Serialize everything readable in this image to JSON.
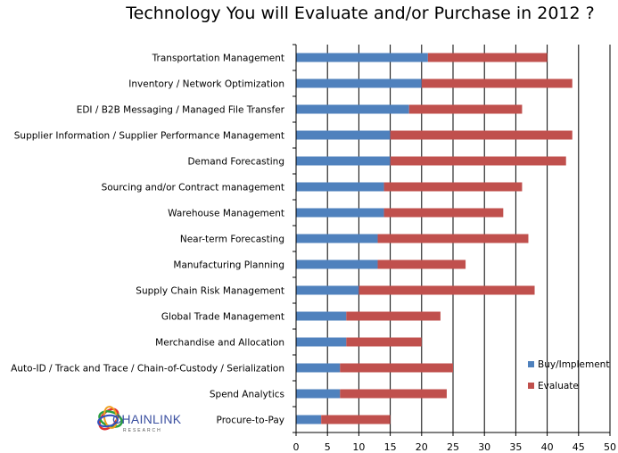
{
  "chart_data": {
    "type": "bar",
    "orientation": "horizontal",
    "stacked": true,
    "title": "Technology You will Evaluate and/or Purchase in 2012 ?",
    "categories": [
      "Transportation Management",
      "Inventory / Network Optimization",
      "EDI / B2B Messaging / Managed File Transfer",
      "Supplier Information / Supplier Performance Management",
      "Demand  Forecasting",
      "Sourcing and/or Contract management",
      "Warehouse Management",
      "Near-term Forecasting",
      "Manufacturing Planning",
      "Supply Chain Risk Management",
      "Global Trade Management",
      "Merchandise and Allocation",
      "Auto-ID / Track and Trace / Chain-of-Custody / Serialization",
      "Spend Analytics",
      "Procure-to-Pay"
    ],
    "series": [
      {
        "name": "Buy/Implement",
        "color": "#4f81bd",
        "values": [
          21,
          20,
          18,
          15,
          15,
          14,
          14,
          13,
          13,
          10,
          8,
          8,
          7,
          7,
          4
        ]
      },
      {
        "name": "Evaluate",
        "color": "#c0504d",
        "values": [
          19,
          24,
          18,
          29,
          28,
          22,
          19,
          24,
          14,
          28,
          15,
          12,
          18,
          17,
          11
        ]
      }
    ],
    "xlim": [
      0,
      50
    ],
    "xticks": [
      "0",
      "5",
      "10",
      "15",
      "20",
      "25",
      "30",
      "35",
      "40",
      "45",
      "50"
    ],
    "grid": true,
    "legend_position": "right"
  },
  "logo": {
    "brand": "CHAINLINK",
    "sub": "RESEARCH"
  }
}
